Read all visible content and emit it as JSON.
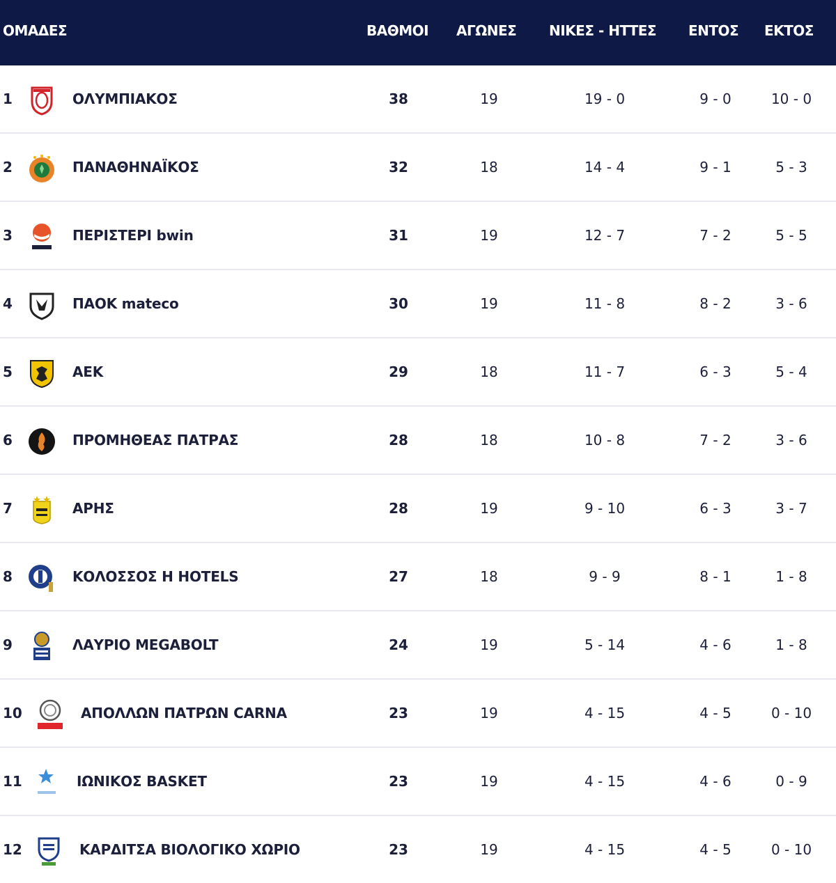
{
  "header": {
    "team": "ΟΜΑΔΕΣ",
    "points": "ΒΑΘΜΟΙ",
    "games": "ΑΓΩΝΕΣ",
    "wins_losses": "ΝΙΚΕΣ - ΗΤΤΕΣ",
    "home": "ΕΝΤΟΣ",
    "away": "ΕΚΤΟΣ"
  },
  "colors": {
    "header_bg": "#0e1a45",
    "points_accent": "#d4803a",
    "row_divider": "#e6e8ee"
  },
  "rows": [
    {
      "rank": "1",
      "team": "ΟΛΥΜΠΙΑΚΟΣ",
      "points": "38",
      "games": "19",
      "wl": "19 - 0",
      "home": "9 - 0",
      "away": "10 - 0",
      "logo": "olympiacos-logo-icon"
    },
    {
      "rank": "2",
      "team": "ΠΑΝΑΘΗΝΑΪΚΟΣ",
      "points": "32",
      "games": "18",
      "wl": "14 - 4",
      "home": "9 - 1",
      "away": "5 - 3",
      "logo": "panathinaikos-logo-icon"
    },
    {
      "rank": "3",
      "team": "ΠΕΡΙΣΤΕΡΙ bwin",
      "points": "31",
      "games": "19",
      "wl": "12 - 7",
      "home": "7 - 2",
      "away": "5 - 5",
      "logo": "peristeri-logo-icon"
    },
    {
      "rank": "4",
      "team": "ΠΑΟΚ mateco",
      "points": "30",
      "games": "19",
      "wl": "11 - 8",
      "home": "8 - 2",
      "away": "3 - 6",
      "logo": "paok-logo-icon"
    },
    {
      "rank": "5",
      "team": "ΑΕΚ",
      "points": "29",
      "games": "18",
      "wl": "11 - 7",
      "home": "6 - 3",
      "away": "5 - 4",
      "logo": "aek-logo-icon"
    },
    {
      "rank": "6",
      "team": "ΠΡΟΜΗΘΕΑΣ ΠΑΤΡΑΣ",
      "points": "28",
      "games": "18",
      "wl": "10 - 8",
      "home": "7 - 2",
      "away": "3 - 6",
      "logo": "promitheas-logo-icon"
    },
    {
      "rank": "7",
      "team": "ΑΡΗΣ",
      "points": "28",
      "games": "19",
      "wl": "9 - 10",
      "home": "6 - 3",
      "away": "3 - 7",
      "logo": "aris-logo-icon"
    },
    {
      "rank": "8",
      "team": "ΚΟΛΟΣΣΟΣ Η HOTELS",
      "points": "27",
      "games": "18",
      "wl": "9 - 9",
      "home": "8 - 1",
      "away": "1 - 8",
      "logo": "kolossos-logo-icon"
    },
    {
      "rank": "9",
      "team": "ΛΑΥΡΙΟ MEGABOLT",
      "points": "24",
      "games": "19",
      "wl": "5 - 14",
      "home": "4 - 6",
      "away": "1 - 8",
      "logo": "lavrio-logo-icon"
    },
    {
      "rank": "10",
      "team": "ΑΠΟΛΛΩΝ ΠΑΤΡΩΝ CARNA",
      "points": "23",
      "games": "19",
      "wl": "4 - 15",
      "home": "4 - 5",
      "away": "0 - 10",
      "logo": "apollon-patron-logo-icon"
    },
    {
      "rank": "11",
      "team": "ΙΩΝΙΚΟΣ BASKET",
      "points": "23",
      "games": "19",
      "wl": "4 - 15",
      "home": "4 - 6",
      "away": "0 - 9",
      "logo": "ionikos-logo-icon"
    },
    {
      "rank": "12",
      "team": "ΚΑΡΔΙΤΣΑ ΒΙΟΛΟΓΙΚΟ ΧΩΡΙΟ",
      "points": "23",
      "games": "19",
      "wl": "4 - 15",
      "home": "4 - 5",
      "away": "0 - 10",
      "logo": "karditsa-logo-icon"
    }
  ]
}
